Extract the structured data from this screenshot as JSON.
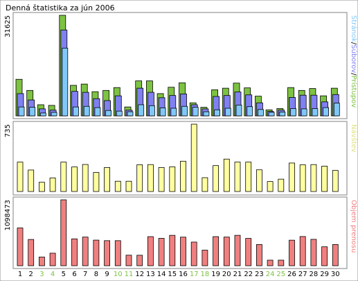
{
  "chart_data": {
    "type": "bar",
    "title": "Denná štatistika za jún 2006",
    "categories": [
      "1",
      "2",
      "3",
      "4",
      "5",
      "6",
      "7",
      "8",
      "9",
      "10",
      "11",
      "12",
      "13",
      "14",
      "15",
      "16",
      "17",
      "18",
      "19",
      "20",
      "21",
      "22",
      "23",
      "24",
      "25",
      "26",
      "27",
      "28",
      "29",
      "30"
    ],
    "weekend_days": [
      "3",
      "4",
      "10",
      "11",
      "17",
      "18",
      "24",
      "25"
    ],
    "colors": {
      "pristupov": "#7dc242",
      "suborov": "#8080f0",
      "stranok": "#80c8f8",
      "navstev": "#ffffa0",
      "objem": "#f08080",
      "weekday_tick": "#000000",
      "weekend_tick": "#7dc242",
      "frame": "#808080"
    },
    "panels": [
      {
        "name": "hits",
        "ymax_label": "31625",
        "ymax": 31625,
        "side_label_parts": [
          {
            "text": "Stránok",
            "color": "#80c8f8"
          },
          {
            "text": "/",
            "color": "#000000"
          },
          {
            "text": "Súborov",
            "color": "#8080f0"
          },
          {
            "text": "/",
            "color": "#000000"
          },
          {
            "text": "Prístupov",
            "color": "#7dc242"
          }
        ],
        "series": [
          {
            "name": "Prístupov",
            "values": [
              11500,
              8000,
              3500,
              3300,
              31625,
              9600,
              10000,
              7600,
              8000,
              8900,
              2800,
              11000,
              11000,
              7000,
              9000,
              10400,
              4100,
              2700,
              8200,
              8700,
              10300,
              8800,
              6200,
              1900,
              2300,
              8900,
              8000,
              8600,
              6300,
              8700
            ]
          },
          {
            "name": "Súborov",
            "values": [
              7000,
              5000,
              2200,
              1800,
              27000,
              7700,
              7400,
              5400,
              4800,
              6300,
              1800,
              8700,
              7400,
              5700,
              6400,
              6900,
              3500,
              2200,
              6100,
              6400,
              7500,
              6600,
              4100,
              1400,
              1800,
              5800,
              6500,
              6500,
              4400,
              6700
            ]
          },
          {
            "name": "Stránok",
            "values": [
              2800,
              2700,
              900,
              1100,
              21300,
              2800,
              3000,
              2600,
              1700,
              1500,
              1300,
              3500,
              3200,
              2500,
              2400,
              3000,
              2700,
              1300,
              1900,
              2400,
              3400,
              2900,
              2000,
              1100,
              1200,
              2300,
              2200,
              2300,
              2600,
              4000
            ]
          }
        ]
      },
      {
        "name": "visits",
        "ymax_label": "735",
        "ymax": 735,
        "side_label_parts": [
          {
            "text": "Návštev",
            "color": "#e0e080"
          }
        ],
        "series": [
          {
            "name": "Návštev",
            "values": [
              321,
              235,
              101,
              148,
              321,
              268,
              295,
              208,
              262,
              112,
              112,
              292,
              294,
              262,
              269,
              331,
              735,
              151,
              283,
              354,
              321,
              321,
              237,
              109,
              135,
              311,
              291,
              294,
              277,
              230
            ]
          }
        ]
      },
      {
        "name": "kb",
        "ymax_label": "1098473",
        "ymax": 1098473,
        "side_label_parts": [
          {
            "text": "Objem prenosu",
            "color": "#f08080"
          }
        ],
        "series": [
          {
            "name": "Objem prenosu",
            "values": [
              630000,
              438000,
              145000,
              209000,
              1098473,
              448000,
              478000,
              427000,
              418000,
              418000,
              176000,
              175000,
              485000,
              457000,
              507000,
              477000,
              394000,
              260000,
              485000,
              478000,
              507000,
              456000,
              354000,
              93000,
              93000,
              426000,
              487000,
              440000,
              316000,
              354000
            ]
          }
        ]
      }
    ]
  }
}
